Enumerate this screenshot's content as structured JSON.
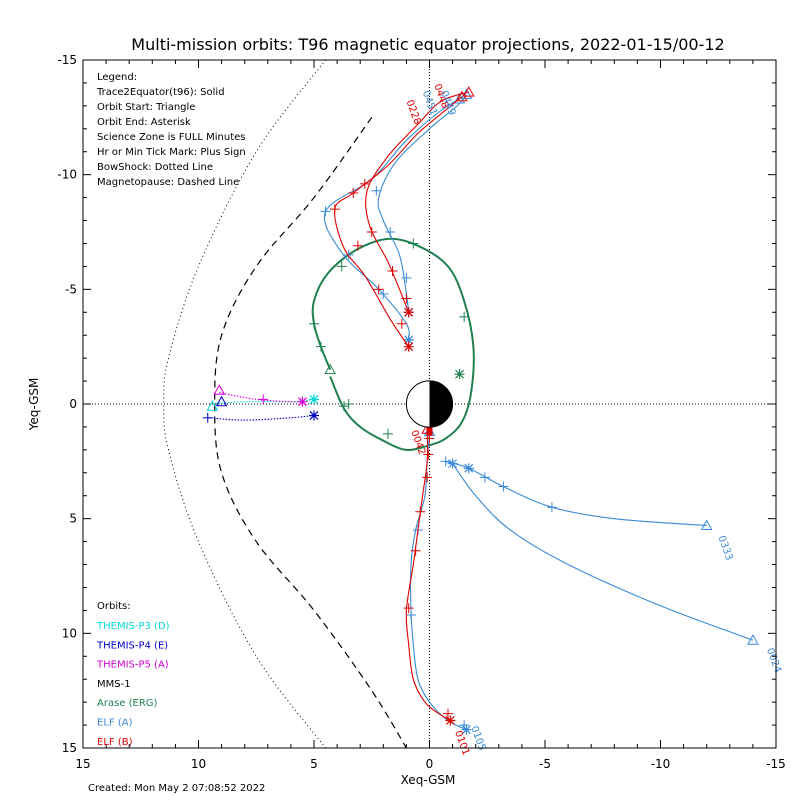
{
  "chart_data": {
    "type": "scatter",
    "title": "Multi-mission orbits: T96 magnetic equator projections, 2022-01-15/00-12",
    "xlabel": "Xeq-GSM",
    "ylabel": "Yeq-GSM",
    "xlim": [
      15,
      -15
    ],
    "ylim": [
      15,
      -15
    ],
    "xticks": [
      15,
      10,
      5,
      0,
      -5,
      -10,
      -15
    ],
    "yticks": [
      -15,
      -10,
      -5,
      0,
      5,
      10,
      15
    ],
    "tick_labels_x": [
      "15",
      "10",
      "5",
      "0",
      "-5",
      "-10",
      "-15"
    ],
    "tick_labels_y": [
      "-15",
      "-10",
      "-5",
      "0",
      "5",
      "10",
      "15"
    ],
    "footer": "Created: Mon May  2 07:08:52 2022",
    "legend_lines": [
      "Legend:",
      "Trace2Equator(t96): Solid",
      "Orbit Start: Triangle",
      "Orbit End: Asterisk",
      "Science Zone is FULL Minutes",
      "Hr or Min Tick Mark: Plus Sign",
      "BowShock: Dotted Line",
      "Magnetopause: Dashed Line"
    ],
    "orbits_title": "Orbits:",
    "orbits": [
      {
        "name": "THEMIS-P3 (D)",
        "color": "#00d8d8"
      },
      {
        "name": "THEMIS-P4 (E)",
        "color": "#0000c8"
      },
      {
        "name": "THEMIS-P5 (A)",
        "color": "#d800d8"
      },
      {
        "name": "MMS-1",
        "color": "#000000"
      },
      {
        "name": "Arase (ERG)",
        "color": "#208050"
      },
      {
        "name": "ELF (A)",
        "color": "#3a8ad8"
      },
      {
        "name": "ELF (B)",
        "color": "#e00000"
      }
    ],
    "boundaries": {
      "bowshock_dotted": [
        [
          4.5,
          -15
        ],
        [
          7.5,
          -11
        ],
        [
          10,
          -6
        ],
        [
          11.3,
          -2
        ],
        [
          11.5,
          0
        ],
        [
          11.3,
          2
        ],
        [
          10,
          6
        ],
        [
          7.5,
          11
        ],
        [
          4.5,
          15
        ]
      ],
      "magnetopause_dashed": [
        [
          2.5,
          -12.5
        ],
        [
          5,
          -9
        ],
        [
          7.5,
          -6
        ],
        [
          9,
          -3
        ],
        [
          9.3,
          0
        ],
        [
          9,
          3
        ],
        [
          7.5,
          6
        ],
        [
          5,
          9
        ],
        [
          2.5,
          12.5
        ],
        [
          1,
          15
        ]
      ]
    },
    "series": [
      {
        "name": "Arase (ERG)",
        "color": "#208050",
        "points": [
          [
            4.3,
            -1.5
          ],
          [
            4.7,
            -2.5
          ],
          [
            5,
            -3.5
          ],
          [
            5,
            -4.5
          ],
          [
            4.4,
            -5.7
          ],
          [
            3.2,
            -6.7
          ],
          [
            1.8,
            -7.2
          ],
          [
            0.5,
            -6.9
          ],
          [
            -0.8,
            -6
          ],
          [
            -1.5,
            -4.5
          ],
          [
            -1.9,
            -2.5
          ],
          [
            -1.8,
            -0.5
          ],
          [
            -1.4,
            0.8
          ],
          [
            -0.7,
            1.5
          ],
          [
            0,
            1.8
          ],
          [
            1,
            2
          ],
          [
            2,
            1.6
          ],
          [
            3,
            1
          ],
          [
            3.7,
            0.2
          ],
          [
            4.3,
            -1.2
          ]
        ],
        "markers": {
          "start": [
            4.3,
            -1.5
          ],
          "end": [
            -1.3,
            -1.3
          ]
        },
        "ticks": [
          [
            4.7,
            -2.5
          ],
          [
            5,
            -3.5
          ],
          [
            3.8,
            -6
          ],
          [
            0.7,
            -7
          ],
          [
            -1.5,
            -3.8
          ],
          [
            3.7,
            0.1
          ],
          [
            3.5,
            0
          ],
          [
            1.8,
            1.3
          ]
        ]
      },
      {
        "name": "THEMIS-P3 (D)",
        "color": "#00d8d8",
        "points": [
          [
            9.5,
            0
          ],
          [
            8,
            -0.1
          ],
          [
            6,
            -0.1
          ],
          [
            5,
            -0.2
          ]
        ],
        "markers": {
          "start": [
            9.4,
            0.1
          ],
          "end": [
            5,
            -0.2
          ]
        },
        "ticks": [
          [
            5,
            -0.2
          ]
        ]
      },
      {
        "name": "THEMIS-P4 (E)",
        "color": "#0000c8",
        "points": [
          [
            9.6,
            0.6
          ],
          [
            8,
            0.7
          ],
          [
            6,
            0.6
          ],
          [
            5,
            0.5
          ]
        ],
        "markers": {
          "start": [
            9,
            -0.1
          ],
          "end": [
            5,
            0.5
          ]
        },
        "ticks": [
          [
            9.6,
            0.6
          ],
          [
            5,
            0.5
          ]
        ]
      },
      {
        "name": "THEMIS-P5 (A)",
        "color": "#d800d8",
        "points": [
          [
            9.1,
            -0.5
          ],
          [
            7.5,
            -0.2
          ],
          [
            6,
            -0.1
          ],
          [
            5.5,
            -0.1
          ]
        ],
        "markers": {
          "start": [
            9.1,
            -0.6
          ],
          "end": [
            5.5,
            -0.1
          ]
        },
        "ticks": [
          [
            7.2,
            -0.2
          ]
        ]
      },
      {
        "name": "ELF (A) orbit 1",
        "color": "#3a8ad8",
        "points": [
          [
            -1.6,
            -13.5
          ],
          [
            -1.2,
            -13.0
          ],
          [
            0,
            -12
          ],
          [
            1.5,
            -10.5
          ],
          [
            2.2,
            -9
          ],
          [
            2,
            -8
          ],
          [
            1.3,
            -6.5
          ],
          [
            1,
            -4.8
          ],
          [
            0.9,
            -4.0
          ]
        ],
        "markers": {
          "start": [
            -1.6,
            -13.5
          ],
          "end": [
            0.9,
            -4.0
          ]
        },
        "ticks": [
          [
            2.3,
            -9.3
          ],
          [
            1.7,
            -7.5
          ],
          [
            1,
            -5.5
          ]
        ]
      },
      {
        "name": "ELF (A) orbit 2",
        "color": "#3a8ad8",
        "points": [
          [
            -1.3,
            -13.3
          ],
          [
            -0.5,
            -12.8
          ],
          [
            1,
            -11.5
          ],
          [
            2.5,
            -9.8
          ],
          [
            4.5,
            -8.4
          ],
          [
            3.8,
            -6.6
          ],
          [
            2.2,
            -5
          ],
          [
            1,
            -3.5
          ],
          [
            0.9,
            -2.8
          ]
        ],
        "markers": {
          "start": [
            -1.3,
            -13.3
          ],
          "end": [
            0.9,
            -2.8
          ]
        },
        "ticks": [
          [
            4.5,
            -8.4
          ],
          [
            3.5,
            -6.5
          ],
          [
            2,
            -4.8
          ]
        ]
      },
      {
        "name": "ELF (B) orbit 1",
        "color": "#e00000",
        "points": [
          [
            -1.7,
            -13.6
          ],
          [
            -0.5,
            -13.2
          ],
          [
            0.5,
            -12.2
          ],
          [
            1.8,
            -10.8
          ],
          [
            2.7,
            -9.3
          ],
          [
            2.6,
            -7.8
          ],
          [
            1.8,
            -6.2
          ],
          [
            1.3,
            -5.0
          ],
          [
            0.9,
            -4.0
          ]
        ],
        "markers": {
          "start": [
            -1.7,
            -13.6
          ],
          "end": [
            0.9,
            -4.0
          ]
        },
        "ticks": [
          [
            2.8,
            -9.6
          ],
          [
            2.5,
            -7.5
          ],
          [
            1.6,
            -5.8
          ],
          [
            1.0,
            -4.6
          ]
        ]
      },
      {
        "name": "ELF (B) orbit 2",
        "color": "#e00000",
        "points": [
          [
            -1.4,
            -13.4
          ],
          [
            -0.8,
            -12.9
          ],
          [
            0.5,
            -11.8
          ],
          [
            1.8,
            -10.4
          ],
          [
            3.3,
            -9.2
          ],
          [
            4.1,
            -8.5
          ],
          [
            3.7,
            -6.8
          ],
          [
            2.8,
            -5.6
          ],
          [
            1.7,
            -3.7
          ],
          [
            0.9,
            -2.5
          ]
        ],
        "markers": {
          "start": [
            -1.4,
            -13.4
          ],
          "end": [
            0.9,
            -2.5
          ]
        },
        "ticks": [
          [
            3.3,
            -9.2
          ],
          [
            4.1,
            -8.5
          ],
          [
            3.1,
            -6.9
          ],
          [
            2.2,
            -5.0
          ],
          [
            1.2,
            -3.5
          ]
        ]
      },
      {
        "name": "ELF (A) dayside",
        "color": "#3a8ad8",
        "points": [
          [
            0,
            1.2
          ],
          [
            0.1,
            2.5
          ],
          [
            0.2,
            4
          ],
          [
            0.6,
            5.5
          ],
          [
            0.8,
            7
          ],
          [
            0.8,
            9
          ],
          [
            0.7,
            10.5
          ],
          [
            0.5,
            12
          ],
          [
            0,
            13
          ],
          [
            -0.8,
            13.8
          ],
          [
            -1.6,
            14.2
          ]
        ],
        "markers": {
          "start": [
            0,
            1.2
          ],
          "end": [
            -1.6,
            14.2
          ]
        },
        "ticks": [
          [
            0.5,
            5.5
          ],
          [
            0.8,
            9.2
          ],
          [
            -1.5,
            14
          ]
        ]
      },
      {
        "name": "ELF (B) dayside",
        "color": "#e00000",
        "points": [
          [
            0.1,
            1.1
          ],
          [
            0.1,
            2.5
          ],
          [
            0.3,
            4
          ],
          [
            0.5,
            5.5
          ],
          [
            0.7,
            7
          ],
          [
            1,
            9
          ],
          [
            0.9,
            10.5
          ],
          [
            0.7,
            12
          ],
          [
            0.2,
            13
          ],
          [
            -0.4,
            13.5
          ],
          [
            -0.9,
            13.8
          ]
        ],
        "markers": {
          "start": [
            0.1,
            1.1
          ],
          "end": [
            -0.9,
            13.8
          ]
        },
        "ticks": [
          [
            0.4,
            4.7
          ],
          [
            0.6,
            6.4
          ],
          [
            0.9,
            8.9
          ],
          [
            -0.8,
            13.5
          ],
          [
            0,
            1.5
          ],
          [
            0.05,
            2.2
          ],
          [
            0.1,
            3.2
          ]
        ]
      },
      {
        "name": "ELF (A) 0333",
        "color": "#3a8ad8",
        "points": [
          [
            -0.7,
            2.5
          ],
          [
            -1.7,
            2.8
          ],
          [
            -3.2,
            3.6
          ],
          [
            -5.3,
            4.5
          ],
          [
            -8,
            5
          ],
          [
            -12,
            5.3
          ]
        ],
        "markers": {
          "start": [
            -12,
            5.3
          ],
          "end": [
            -1.7,
            2.8
          ]
        },
        "ticks": [
          [
            -0.7,
            2.5
          ],
          [
            -2.4,
            3.2
          ],
          [
            -3.2,
            3.6
          ],
          [
            -5.3,
            4.5
          ]
        ]
      },
      {
        "name": "ELF (A) 0024",
        "color": "#3a8ad8",
        "points": [
          [
            -1,
            2.6
          ],
          [
            -2,
            4
          ],
          [
            -3.5,
            5.5
          ],
          [
            -6,
            7
          ],
          [
            -10,
            8.8
          ],
          [
            -14,
            10.3
          ]
        ],
        "markers": {
          "start": [
            -14,
            10.3
          ],
          "end": [
            -1,
            2.6
          ]
        },
        "ticks": []
      }
    ],
    "annotations": [
      {
        "text": "0042",
        "at": [
          0.8,
          1.2
        ],
        "color": "#e00000"
      },
      {
        "text": "0333",
        "at": [
          -12.5,
          5.8
        ],
        "color": "#3a8ad8"
      },
      {
        "text": "0024",
        "at": [
          -14.6,
          10.7
        ],
        "color": "#3a8ad8"
      },
      {
        "text": "0105",
        "at": [
          -1.8,
          14.1
        ],
        "color": "#3a8ad8"
      },
      {
        "text": "0101",
        "at": [
          -1.1,
          14.3
        ],
        "color": "#e00000"
      },
      {
        "text": "0448",
        "at": [
          -0.2,
          -13.9
        ],
        "color": "#e00000"
      },
      {
        "text": "0449",
        "at": [
          -0.5,
          -13.6
        ],
        "color": "#3a8ad8"
      },
      {
        "text": "0451",
        "at": [
          0.3,
          -13.6
        ],
        "color": "#3a8ad8"
      },
      {
        "text": "0228",
        "at": [
          1.0,
          -13.2
        ],
        "color": "#e00000"
      }
    ],
    "grid": false,
    "reference_lines": [
      "x=0 dotted",
      "y=0 dotted"
    ]
  }
}
